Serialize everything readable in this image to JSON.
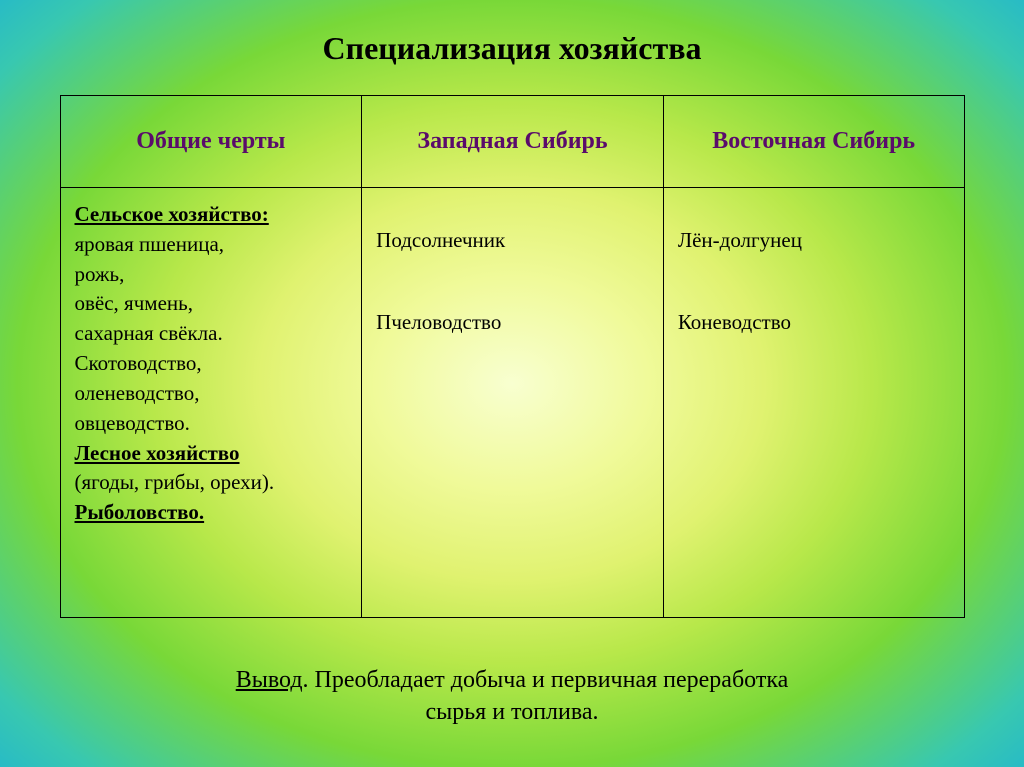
{
  "title": "Специализация хозяйства",
  "table": {
    "headers": {
      "c1": "Общие черты",
      "c2": "Западная Сибирь",
      "c3": "Восточная Сибирь"
    },
    "header_color": "#5a0b6b",
    "border_color": "#000000",
    "row": {
      "common": {
        "sect1_title": "Сельское хозяйство:",
        "sect1_l1": "яровая пшеница,",
        "sect1_l2": "рожь,",
        "sect1_l3": "овёс, ячмень,",
        "sect1_l4": "сахарная свёкла.",
        "sect1_l5": "Скотоводство,",
        "sect1_l6": "оленеводство,",
        "sect1_l7": "овцеводство.",
        "sect2_title": "Лесное хозяйство",
        "sect2_l1": "(ягоды, грибы, орехи).",
        "sect3_title": "Рыболовство."
      },
      "west": {
        "l1": "Подсолнечник",
        "l2": "Пчеловодство"
      },
      "east": {
        "l1": "Лён-долгунец",
        "l2": "Коневодство"
      }
    }
  },
  "conclusion": {
    "label": "Вывод",
    "l1": ". Преобладает добыча и первичная переработка",
    "l2": "сырья и топлива."
  }
}
